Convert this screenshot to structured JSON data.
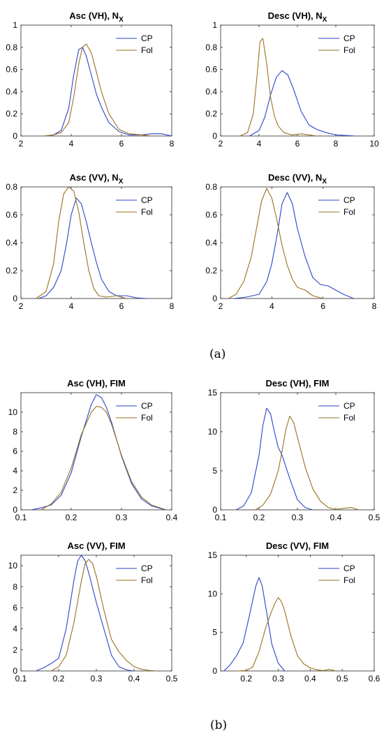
{
  "colors": {
    "cp": "#2A45C6",
    "fol": "#9A7120"
  },
  "chart_data": [
    {
      "type": "line",
      "title": "Asc (VH), N",
      "title_sub": "X",
      "xlim": [
        2,
        8
      ],
      "ylim": [
        0,
        1
      ],
      "xticks": [
        2,
        4,
        6,
        8
      ],
      "yticks": [
        0,
        0.2,
        0.4,
        0.6,
        0.8,
        1
      ],
      "legend": "top-right",
      "series": [
        {
          "name": "CP",
          "x": [
            2.9,
            3.3,
            3.6,
            3.9,
            4.1,
            4.3,
            4.45,
            4.6,
            4.8,
            5.0,
            5.2,
            5.5,
            5.9,
            6.3,
            6.8,
            7.2,
            7.6,
            8.0
          ],
          "y": [
            0,
            0.01,
            0.05,
            0.25,
            0.55,
            0.78,
            0.8,
            0.72,
            0.55,
            0.38,
            0.26,
            0.12,
            0.04,
            0.01,
            0.01,
            0.02,
            0.02,
            0.0
          ]
        },
        {
          "name": "Fol",
          "x": [
            2.9,
            3.3,
            3.6,
            3.9,
            4.1,
            4.3,
            4.45,
            4.6,
            4.8,
            5.0,
            5.2,
            5.5,
            5.9,
            6.3,
            6.8,
            7.2
          ],
          "y": [
            0,
            0.01,
            0.03,
            0.12,
            0.35,
            0.65,
            0.8,
            0.83,
            0.75,
            0.58,
            0.4,
            0.2,
            0.06,
            0.02,
            0.01,
            0.0
          ]
        }
      ]
    },
    {
      "type": "line",
      "title": "Desc (VH), N",
      "title_sub": "X",
      "xlim": [
        2,
        10
      ],
      "ylim": [
        0,
        1
      ],
      "xticks": [
        2,
        4,
        6,
        8,
        10
      ],
      "yticks": [
        0,
        0.2,
        0.4,
        0.6,
        0.8,
        1
      ],
      "legend": "top-right",
      "series": [
        {
          "name": "CP",
          "x": [
            3.5,
            4.0,
            4.3,
            4.6,
            4.9,
            5.2,
            5.5,
            5.8,
            6.2,
            6.6,
            7.0,
            7.5,
            8.0,
            8.5,
            9.0
          ],
          "y": [
            0,
            0.05,
            0.17,
            0.37,
            0.53,
            0.59,
            0.55,
            0.42,
            0.22,
            0.1,
            0.06,
            0.03,
            0.01,
            0.005,
            0
          ]
        },
        {
          "name": "Fol",
          "x": [
            3.0,
            3.4,
            3.7,
            3.9,
            4.05,
            4.2,
            4.4,
            4.6,
            4.8,
            5.0,
            5.3,
            5.7,
            6.2,
            6.6,
            7.0
          ],
          "y": [
            0,
            0.03,
            0.2,
            0.55,
            0.85,
            0.88,
            0.65,
            0.35,
            0.18,
            0.09,
            0.03,
            0.01,
            0.02,
            0.01,
            0
          ]
        }
      ]
    },
    {
      "type": "line",
      "title": "Asc (VV), N",
      "title_sub": "X",
      "xlim": [
        2,
        8
      ],
      "ylim": [
        0,
        0.8
      ],
      "xticks": [
        2,
        4,
        6,
        8
      ],
      "yticks": [
        0,
        0.2,
        0.4,
        0.6,
        0.8
      ],
      "legend": "top-right",
      "series": [
        {
          "name": "CP",
          "x": [
            2.7,
            3.0,
            3.3,
            3.6,
            3.8,
            4.0,
            4.2,
            4.4,
            4.6,
            4.8,
            5.0,
            5.2,
            5.5,
            5.8,
            6.2,
            6.6,
            7.0
          ],
          "y": [
            0,
            0.02,
            0.08,
            0.2,
            0.38,
            0.6,
            0.72,
            0.68,
            0.55,
            0.4,
            0.26,
            0.14,
            0.05,
            0.02,
            0.02,
            0.005,
            0
          ]
        },
        {
          "name": "Fol",
          "x": [
            2.6,
            3.0,
            3.3,
            3.5,
            3.7,
            3.9,
            4.1,
            4.3,
            4.5,
            4.7,
            4.9,
            5.1,
            5.4,
            5.8,
            6.2
          ],
          "y": [
            0,
            0.05,
            0.25,
            0.55,
            0.75,
            0.8,
            0.77,
            0.62,
            0.4,
            0.2,
            0.07,
            0.02,
            0.01,
            0.02,
            0
          ]
        }
      ]
    },
    {
      "type": "line",
      "title": "Desc (VV), N",
      "title_sub": "X",
      "xlim": [
        2,
        8
      ],
      "ylim": [
        0,
        0.8
      ],
      "xticks": [
        2,
        4,
        6,
        8
      ],
      "yticks": [
        0,
        0.2,
        0.4,
        0.6,
        0.8
      ],
      "legend": "top-right",
      "series": [
        {
          "name": "CP",
          "x": [
            2.5,
            3.0,
            3.5,
            3.8,
            4.0,
            4.2,
            4.4,
            4.6,
            4.8,
            5.0,
            5.3,
            5.6,
            5.9,
            6.2,
            6.5,
            6.8,
            7.2
          ],
          "y": [
            0,
            0.01,
            0.03,
            0.12,
            0.25,
            0.45,
            0.68,
            0.76,
            0.68,
            0.5,
            0.3,
            0.15,
            0.1,
            0.09,
            0.06,
            0.03,
            0
          ]
        },
        {
          "name": "Fol",
          "x": [
            2.3,
            2.6,
            2.9,
            3.2,
            3.4,
            3.6,
            3.8,
            4.0,
            4.2,
            4.4,
            4.6,
            4.8,
            5.0,
            5.3,
            5.6,
            6.0
          ],
          "y": [
            0,
            0.03,
            0.12,
            0.3,
            0.5,
            0.7,
            0.79,
            0.72,
            0.56,
            0.38,
            0.24,
            0.14,
            0.08,
            0.06,
            0.02,
            0
          ]
        }
      ]
    },
    {
      "type": "line",
      "title": "Asc (VH), FIM",
      "xlim": [
        0.1,
        0.4
      ],
      "ylim": [
        0,
        12
      ],
      "xticks": [
        0.1,
        0.2,
        0.3,
        0.4
      ],
      "yticks": [
        0,
        2,
        4,
        6,
        8,
        10
      ],
      "legend": "top-right",
      "series": [
        {
          "name": "CP",
          "x": [
            0.12,
            0.14,
            0.16,
            0.18,
            0.2,
            0.22,
            0.24,
            0.25,
            0.26,
            0.27,
            0.28,
            0.3,
            0.32,
            0.34,
            0.36,
            0.38,
            0.39
          ],
          "y": [
            0,
            0.2,
            0.5,
            1.5,
            3.8,
            7.5,
            10.8,
            11.8,
            11.5,
            10.5,
            9.0,
            5.5,
            2.7,
            1.1,
            0.4,
            0.1,
            0
          ]
        },
        {
          "name": "Fol",
          "x": [
            0.14,
            0.16,
            0.18,
            0.2,
            0.22,
            0.24,
            0.25,
            0.26,
            0.27,
            0.28,
            0.3,
            0.32,
            0.34,
            0.36,
            0.38,
            0.39
          ],
          "y": [
            0,
            0.6,
            1.8,
            4.3,
            7.7,
            10.0,
            10.6,
            10.5,
            10.0,
            8.8,
            5.6,
            2.9,
            1.3,
            0.5,
            0.15,
            0
          ]
        }
      ]
    },
    {
      "type": "line",
      "title": "Desc (VH), FIM",
      "xlim": [
        0.1,
        0.5
      ],
      "ylim": [
        0,
        15
      ],
      "xticks": [
        0.1,
        0.2,
        0.3,
        0.4,
        0.5
      ],
      "yticks": [
        0,
        5,
        10,
        15
      ],
      "legend": "top-right",
      "series": [
        {
          "name": "CP",
          "x": [
            0.14,
            0.16,
            0.18,
            0.2,
            0.21,
            0.22,
            0.23,
            0.24,
            0.25,
            0.26,
            0.28,
            0.3,
            0.32,
            0.34
          ],
          "y": [
            0,
            0.5,
            2.2,
            7.0,
            10.8,
            13.0,
            12.3,
            10.0,
            8.0,
            7.0,
            4.0,
            1.3,
            0.3,
            0
          ]
        },
        {
          "name": "Fol",
          "x": [
            0.19,
            0.21,
            0.23,
            0.25,
            0.26,
            0.27,
            0.28,
            0.29,
            0.3,
            0.32,
            0.34,
            0.36,
            0.38,
            0.4,
            0.42,
            0.44,
            0.46
          ],
          "y": [
            0,
            0.6,
            2.0,
            5.0,
            7.5,
            10.3,
            12.0,
            11.2,
            9.3,
            5.5,
            2.7,
            1.1,
            0.3,
            0.05,
            0.2,
            0.3,
            0
          ]
        }
      ]
    },
    {
      "type": "line",
      "title": "Asc (VV), FIM",
      "xlim": [
        0.1,
        0.5
      ],
      "ylim": [
        0,
        11
      ],
      "xticks": [
        0.1,
        0.2,
        0.3,
        0.4,
        0.5
      ],
      "yticks": [
        0,
        2,
        4,
        6,
        8,
        10
      ],
      "legend": "top-right",
      "series": [
        {
          "name": "CP",
          "x": [
            0.14,
            0.16,
            0.18,
            0.2,
            0.22,
            0.24,
            0.25,
            0.26,
            0.27,
            0.28,
            0.3,
            0.32,
            0.34,
            0.36,
            0.38,
            0.4
          ],
          "y": [
            0,
            0.3,
            0.7,
            1.2,
            4.0,
            8.5,
            10.4,
            11.0,
            10.5,
            9.3,
            6.5,
            4.0,
            1.5,
            0.4,
            0.1,
            0
          ]
        },
        {
          "name": "Fol",
          "x": [
            0.18,
            0.2,
            0.22,
            0.24,
            0.26,
            0.27,
            0.28,
            0.29,
            0.3,
            0.32,
            0.34,
            0.36,
            0.38,
            0.4,
            0.42,
            0.44,
            0.46
          ],
          "y": [
            0,
            0.4,
            1.5,
            4.5,
            8.5,
            10.2,
            10.6,
            10.2,
            9.0,
            5.8,
            3.0,
            1.8,
            1.0,
            0.4,
            0.15,
            0.05,
            0
          ]
        }
      ]
    },
    {
      "type": "line",
      "title": "Desc (VV), FIM",
      "xlim": [
        0.12,
        0.6
      ],
      "ylim": [
        0,
        15
      ],
      "xticks": [
        0.2,
        0.3,
        0.4,
        0.5,
        0.6
      ],
      "yticks": [
        0,
        5,
        10,
        15
      ],
      "legend": "top-right",
      "series": [
        {
          "name": "CP",
          "x": [
            0.13,
            0.15,
            0.17,
            0.19,
            0.21,
            0.23,
            0.24,
            0.25,
            0.26,
            0.27,
            0.28,
            0.3,
            0.32
          ],
          "y": [
            0,
            0.8,
            2.0,
            3.6,
            7.2,
            11.0,
            12.1,
            11.0,
            8.5,
            6.0,
            3.5,
            1.0,
            0
          ]
        },
        {
          "name": "Fol",
          "x": [
            0.17,
            0.2,
            0.22,
            0.24,
            0.26,
            0.28,
            0.29,
            0.3,
            0.31,
            0.32,
            0.34,
            0.36,
            0.38,
            0.4,
            0.42,
            0.44,
            0.46,
            0.48
          ],
          "y": [
            0,
            0.05,
            0.5,
            2.5,
            5.5,
            7.8,
            8.8,
            9.5,
            9.0,
            7.8,
            4.5,
            2.0,
            0.9,
            0.4,
            0.15,
            0.05,
            0.2,
            0
          ]
        }
      ]
    }
  ],
  "panel_labels": [
    "(a)",
    "(b)"
  ]
}
